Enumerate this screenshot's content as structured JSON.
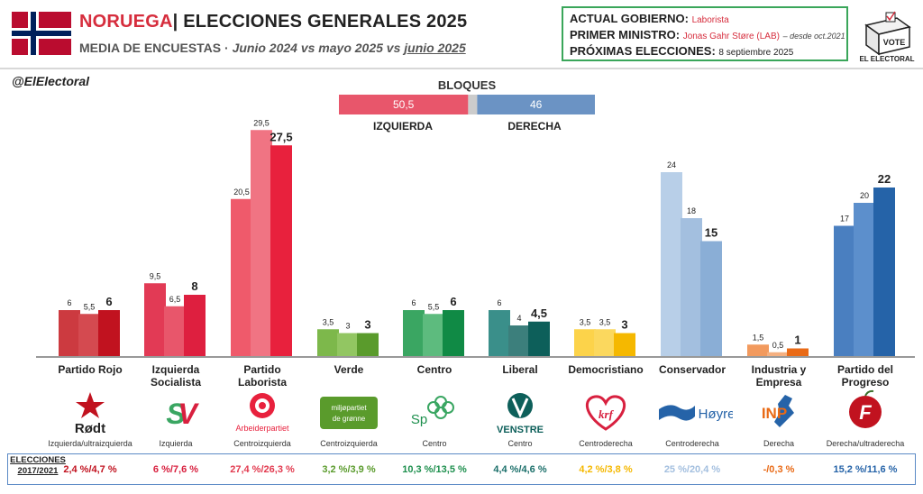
{
  "header": {
    "country": "NORUEGA",
    "separator": "|",
    "title_rest": "ELECCIONES GENERALES 2025",
    "subtitle_main": "MEDIA DE ENCUESTAS",
    "subtitle_dot": "·",
    "subtitle_periods": "Junio 2024 vs mayo 2025 vs",
    "subtitle_last": "junio 2025"
  },
  "government": {
    "gov_label": "ACTUAL GOBIERNO:",
    "gov_value": "Laborista",
    "pm_label": "PRIMER MINISTRO:",
    "pm_value": "Jonas Gahr Støre (LAB)",
    "pm_since": "– desde oct.2021",
    "next_label": "PRÓXIMAS ELECCIONES:",
    "next_value": "8 septiembre 2025"
  },
  "brand": {
    "vote": "VOTE",
    "name": "EL ELECTORAL",
    "handle": "@ElElectoral"
  },
  "colors": {
    "accent_red": "#d62d3d",
    "box_green": "#3aa65a",
    "results_border": "#5b8ac6"
  },
  "chart_data": {
    "type": "bar",
    "blocks": {
      "title": "BLOQUES",
      "left": {
        "label": "IZQUIERDA",
        "value": 50.5,
        "value_text": "50,5",
        "color": "#e8566b"
      },
      "right": {
        "label": "DERECHA",
        "value": 46,
        "value_text": "46",
        "color": "#6b93c4"
      }
    },
    "series": [
      {
        "name": "Junio 2024"
      },
      {
        "name": "Mayo 2025"
      },
      {
        "name": "Junio 2025"
      }
    ],
    "ylim": [
      0,
      30
    ],
    "categories": [
      "Partido Rojo",
      "Izquierda Socialista",
      "Partido Laborista",
      "Verde",
      "Centro",
      "Liberal",
      "Democristiano",
      "Conservador",
      "Industria y Empresa",
      "Partido del Progreso"
    ],
    "parties": [
      {
        "name_lines": [
          "Partido Rojo"
        ],
        "values": [
          6,
          5.5,
          6
        ],
        "labels": [
          "6",
          "5,5",
          "6"
        ],
        "colors": [
          "#cc3a40",
          "#d44a50",
          "#c1121f"
        ],
        "logo": "rodt-star-icon",
        "logo_text": "Rødt",
        "ideology": "Izquierda/ultraizquierda",
        "result": "2,4 %/4,7 %",
        "result_color": "#c1121f"
      },
      {
        "name_lines": [
          "Izquierda",
          "Socialista"
        ],
        "values": [
          9.5,
          6.5,
          8
        ],
        "labels": [
          "9,5",
          "6,5",
          "8"
        ],
        "colors": [
          "#e23a55",
          "#e8566b",
          "#de1f3f"
        ],
        "logo": "sv-letters-icon",
        "logo_text": "SV",
        "ideology": "Izquierda",
        "result": "6 %/7,6 %",
        "result_color": "#d8203f"
      },
      {
        "name_lines": [
          "Partido",
          "Laborista"
        ],
        "values": [
          20.5,
          29.5,
          27.5
        ],
        "labels": [
          "20,5",
          "29,5",
          "27,5"
        ],
        "colors": [
          "#ef5a6b",
          "#f07483",
          "#e8213d"
        ],
        "logo": "rose-icon",
        "logo_text": "Arbeiderpartiet",
        "ideology": "Centroizquierda",
        "result": "27,4 %/26,3 %",
        "result_color": "#e23a4f"
      },
      {
        "name_lines": [
          "Verde"
        ],
        "values": [
          3.5,
          3,
          3
        ],
        "labels": [
          "3,5",
          "3",
          "3"
        ],
        "colors": [
          "#7db84b",
          "#92c662",
          "#5a9b2c"
        ],
        "logo": "mdg-box-icon",
        "logo_text": "miljøpartiet de grønne",
        "ideology": "Centroizquierda",
        "result": "3,2 %/3,9 %",
        "result_color": "#5a9b2c"
      },
      {
        "name_lines": [
          "Centro"
        ],
        "values": [
          6,
          5.5,
          6
        ],
        "labels": [
          "6",
          "5,5",
          "6"
        ],
        "colors": [
          "#3aa662",
          "#5dbb7e",
          "#108a45"
        ],
        "logo": "clover-icon",
        "logo_text": "Sp",
        "ideology": "Centro",
        "result": "10,3 %/13,5 %",
        "result_color": "#1d8f4d"
      },
      {
        "name_lines": [
          "Liberal"
        ],
        "values": [
          6,
          4,
          4.5
        ],
        "labels": [
          "6",
          "4",
          "4,5"
        ],
        "colors": [
          "#3a8f8a",
          "#3c7f7c",
          "#0d5f5a"
        ],
        "logo": "venstre-v-icon",
        "logo_text": "VENSTRE",
        "ideology": "Centro",
        "result": "4,4 %/4,6 %",
        "result_color": "#1b6f6a"
      },
      {
        "name_lines": [
          "Democristiano"
        ],
        "values": [
          3.5,
          3.5,
          3
        ],
        "labels": [
          "3,5",
          "3,5",
          "3"
        ],
        "colors": [
          "#fcd34a",
          "#fbd85e",
          "#f5b800"
        ],
        "logo": "krf-heart-icon",
        "logo_text": "krf",
        "ideology": "Centroderecha",
        "result": "4,2 %/3,8 %",
        "result_color": "#f5b800"
      },
      {
        "name_lines": [
          "Conservador"
        ],
        "values": [
          24,
          18,
          15
        ],
        "labels": [
          "24",
          "18",
          "15"
        ],
        "colors": [
          "#b8cfe8",
          "#a3bfdf",
          "#8aaed6"
        ],
        "logo": "hoyre-flag-icon",
        "logo_text": "Høyre",
        "ideology": "Centroderecha",
        "result": "25 %/20,4 %",
        "result_color": "#a3bfdf"
      },
      {
        "name_lines": [
          "Industria y",
          "Empresa"
        ],
        "values": [
          1.5,
          0.5,
          1
        ],
        "labels": [
          "1,5",
          "0,5",
          "1"
        ],
        "colors": [
          "#f29a5e",
          "#f5b080",
          "#e96a16"
        ],
        "logo": "inp-map-icon",
        "logo_text": "INP",
        "ideology": "Derecha",
        "result": "-/0,3 %",
        "result_color": "#e96a16"
      },
      {
        "name_lines": [
          "Partido del",
          "Progreso"
        ],
        "values": [
          17,
          20,
          22
        ],
        "labels": [
          "17",
          "20",
          "22"
        ],
        "colors": [
          "#4a7fc0",
          "#5c8fcc",
          "#2563a8"
        ],
        "logo": "frp-apple-icon",
        "logo_text": "F",
        "ideology": "Derecha/ultraderecha",
        "result": "15,2 %/11,6 %",
        "result_color": "#2563a8"
      }
    ],
    "results_label_lines": [
      "ELECCIONES",
      "2017/2021"
    ]
  }
}
